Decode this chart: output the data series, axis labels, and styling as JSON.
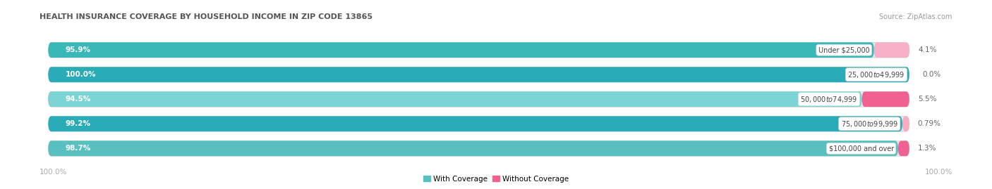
{
  "title": "HEALTH INSURANCE COVERAGE BY HOUSEHOLD INCOME IN ZIP CODE 13865",
  "source": "Source: ZipAtlas.com",
  "categories": [
    "Under $25,000",
    "$25,000 to $49,999",
    "$50,000 to $74,999",
    "$75,000 to $99,999",
    "$100,000 and over"
  ],
  "with_coverage": [
    95.9,
    100.0,
    94.5,
    99.2,
    98.7
  ],
  "without_coverage": [
    4.1,
    0.0,
    5.5,
    0.79,
    1.3
  ],
  "with_coverage_labels": [
    "95.9%",
    "100.0%",
    "94.5%",
    "99.2%",
    "98.7%"
  ],
  "without_coverage_labels": [
    "4.1%",
    "0.0%",
    "5.5%",
    "0.79%",
    "1.3%"
  ],
  "color_with": "#3dbfbf",
  "color_without": "#f08098",
  "color_with_light": "#7dd8d8",
  "color_without_light": "#f8b8c8",
  "background_color": "#ffffff",
  "bar_bg_color": "#e8e8e8",
  "axis_label_left": "100.0%",
  "axis_label_right": "100.0%",
  "legend_with": "With Coverage",
  "legend_without": "Without Coverage"
}
